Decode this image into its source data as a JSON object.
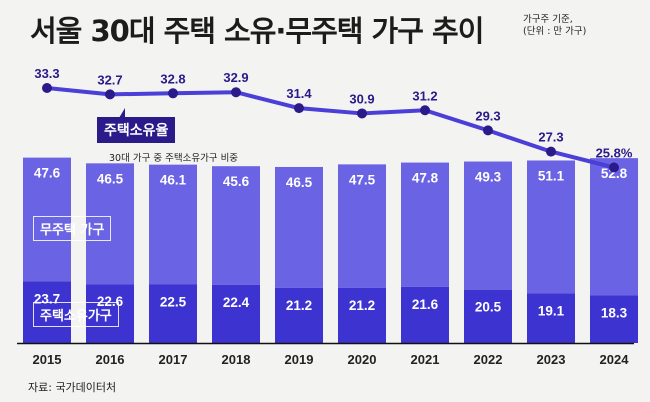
{
  "header": {
    "title": "서울 30대 주택 소유·무주택 가구 추이",
    "unit_line1": "가구주 기준,",
    "unit_line2": "(단위 : 만 가구)"
  },
  "annotations": {
    "ownership_rate_tag": "주택소유율",
    "ownership_rate_note": "30대 가구 중 주택소유가구 비중",
    "legend_non_owner": "무주택 가구",
    "legend_owner": "주택소유가구"
  },
  "source": "자료: 국가데이터처",
  "colors": {
    "non_owner_bar": "#6a63e3",
    "owner_bar": "#3d33d1",
    "line": "#4a3fd6",
    "marker": "#2a1a8a",
    "label_dark": "#2a1a8a"
  },
  "chart_data": {
    "type": "bar",
    "stacked": true,
    "title": "서울 30대 주택 소유·무주택 가구 추이",
    "xlabel": "",
    "ylabel": "만 가구",
    "categories": [
      "2015",
      "2016",
      "2017",
      "2018",
      "2019",
      "2020",
      "2021",
      "2022",
      "2023",
      "2024"
    ],
    "series": [
      {
        "name": "주택소유가구",
        "values": [
          23.7,
          22.6,
          22.5,
          22.4,
          21.2,
          21.2,
          21.6,
          20.5,
          19.1,
          18.3
        ]
      },
      {
        "name": "무주택 가구",
        "values": [
          47.6,
          46.5,
          46.1,
          45.6,
          46.5,
          47.5,
          47.8,
          49.3,
          51.1,
          52.8
        ]
      }
    ],
    "line_series": {
      "name": "주택소유율",
      "unit": "%",
      "values": [
        33.3,
        32.7,
        32.8,
        32.9,
        31.4,
        30.9,
        31.2,
        29.3,
        27.3,
        25.8
      ],
      "labels": [
        "33.3",
        "32.7",
        "32.8",
        "32.9",
        "31.4",
        "30.9",
        "31.2",
        "29.3",
        "27.3",
        "25.8%"
      ]
    },
    "ylim": [
      0,
      72
    ],
    "grid": false,
    "legend": "inline-left"
  }
}
